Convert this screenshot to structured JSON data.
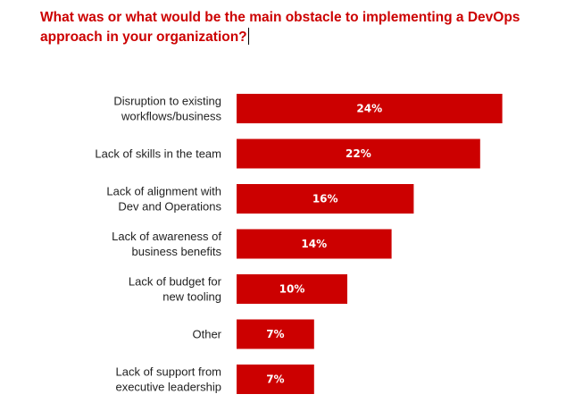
{
  "question": "What was or what would be the main obstacle to implementing a DevOps approach in your organization?",
  "colors": {
    "accent": "#cc0000",
    "text": "#222222",
    "bar_label": "#ffffff"
  },
  "chart_data": {
    "type": "bar",
    "orientation": "horizontal",
    "title": "What was or what would be the main obstacle to implementing a DevOps approach in your organization?",
    "categories": [
      [
        "Disruption to existing",
        "workflows/business"
      ],
      [
        "Lack of skills in the team"
      ],
      [
        "Lack of alignment with",
        "Dev and Operations"
      ],
      [
        "Lack of awareness of",
        "business benefits"
      ],
      [
        "Lack of budget for",
        "new tooling"
      ],
      [
        "Other"
      ],
      [
        "Lack of support from",
        "executive leadership"
      ]
    ],
    "values": [
      24,
      22,
      16,
      14,
      10,
      7,
      7
    ],
    "value_labels": [
      "24%",
      "22%",
      "16%",
      "14%",
      "10%",
      "7%",
      "7%"
    ],
    "xlabel": "",
    "ylabel": "",
    "grid": false,
    "legend": "none"
  }
}
